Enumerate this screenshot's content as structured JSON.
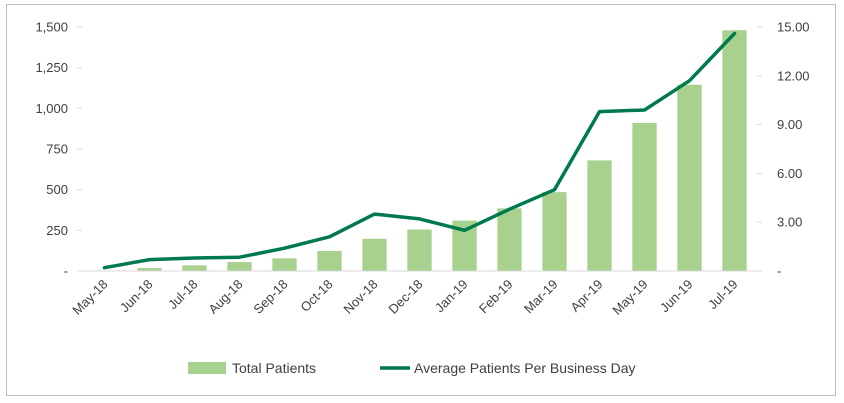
{
  "chart_data": {
    "type": "bar+line",
    "categories": [
      "May-18",
      "Jun-18",
      "Jul-18",
      "Aug-18",
      "Sep-18",
      "Oct-18",
      "Nov-18",
      "Dec-18",
      "Jan-19",
      "Feb-19",
      "Mar-19",
      "Apr-19",
      "May-19",
      "Jun-19",
      "Jul-19"
    ],
    "series": [
      {
        "name": "Total Patients",
        "kind": "bar",
        "axis": "left",
        "color": "#a9d18e",
        "values": [
          3,
          18,
          35,
          55,
          78,
          123,
          198,
          255,
          310,
          385,
          485,
          680,
          910,
          1145,
          1480
        ]
      },
      {
        "name": "Average Patients Per Business Day",
        "kind": "line",
        "axis": "right",
        "color": "#007a4d",
        "values": [
          0.2,
          0.7,
          0.8,
          0.85,
          1.4,
          2.1,
          3.5,
          3.2,
          2.5,
          3.8,
          5.0,
          9.8,
          9.9,
          11.7,
          14.6
        ]
      }
    ],
    "y_left": {
      "ylim": [
        0,
        1500
      ],
      "ticks": [
        0,
        250,
        500,
        750,
        1000,
        1250,
        1500
      ],
      "tick_labels": [
        "-",
        "250",
        "500",
        "750",
        "1,000",
        "1,250",
        "1,500"
      ]
    },
    "y_right": {
      "ylim": [
        0,
        15
      ],
      "ticks": [
        0,
        3,
        6,
        9,
        12,
        15
      ],
      "tick_labels": [
        "-",
        "3.00",
        "6.00",
        "9.00",
        "12.00",
        "15.00"
      ]
    },
    "grid": false,
    "legend": "bottom-center",
    "legend_entries": [
      "Total Patients",
      "Average Patients Per Business Day"
    ]
  }
}
